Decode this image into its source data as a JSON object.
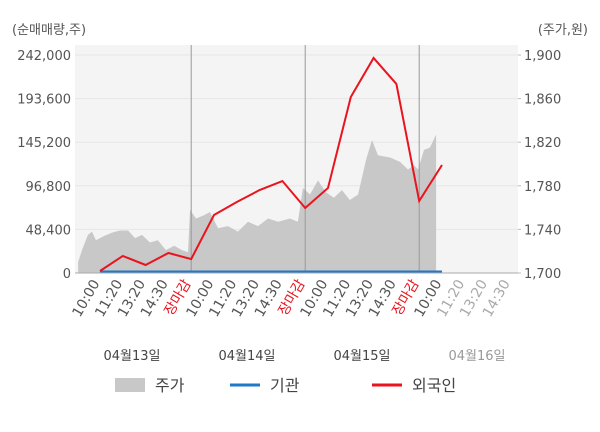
{
  "chart_data": {
    "type": "combo",
    "y_axis_label": "(순매매량,주)",
    "y2_axis_label": "(주가,원)",
    "xlim": [
      -1.1,
      18.9
    ],
    "xticks": [
      {
        "value": 0,
        "label": "10:00"
      },
      {
        "value": 1,
        "label": "11:20"
      },
      {
        "value": 2,
        "label": "13:20"
      },
      {
        "value": 3,
        "label": "14:30"
      },
      {
        "value": 4,
        "label": "장마감"
      },
      {
        "value": 5,
        "label": "10:00"
      },
      {
        "value": 6,
        "label": "11:20"
      },
      {
        "value": 7,
        "label": "13:20"
      },
      {
        "value": 8,
        "label": "14:30"
      },
      {
        "value": 9,
        "label": "장마감"
      },
      {
        "value": 10,
        "label": "10:00"
      },
      {
        "value": 11,
        "label": "11:20"
      },
      {
        "value": 12,
        "label": "13:20"
      },
      {
        "value": 13,
        "label": "14:30"
      },
      {
        "value": 14,
        "label": "장마감"
      },
      {
        "value": 15,
        "label": "10:00"
      },
      {
        "value": 16,
        "label": "11:20"
      },
      {
        "value": 17,
        "label": "13:20"
      },
      {
        "value": 18,
        "label": "14:30"
      }
    ],
    "day_labels": [
      "04월13일",
      "04월14일",
      "04월15일",
      "04월16일"
    ],
    "ylim": [
      0,
      242000
    ],
    "yticks": [
      0,
      {
        "value": 48400,
        "label": "48,400"
      },
      {
        "value": 96800,
        "label": "96,800"
      },
      {
        "value": 145200,
        "label": "145,200"
      },
      {
        "value": 193600,
        "label": "193,600"
      },
      {
        "value": 242000,
        "label": "242,000"
      }
    ],
    "y2lim": [
      1700,
      1900
    ],
    "y2ticks": [
      {
        "value": 1700,
        "label": "1,700"
      },
      {
        "value": 1740,
        "label": "1,740"
      },
      {
        "value": 1780,
        "label": "1,780"
      },
      {
        "value": 1820,
        "label": "1,820"
      },
      {
        "value": 1860,
        "label": "1,860"
      },
      {
        "value": 1900,
        "label": "1,900"
      }
    ],
    "series": [
      {
        "name": "주가",
        "type": "area",
        "axis": "y2",
        "color": "#c8c8c8",
        "x": [
          -0.96,
          -0.79,
          -0.53,
          -0.35,
          -0.18,
          0.18,
          0.53,
          0.88,
          1.23,
          1.54,
          1.84,
          2.19,
          2.54,
          2.89,
          3.25,
          3.6,
          3.86,
          3.95,
          4.21,
          4.56,
          4.82,
          5.18,
          5.61,
          6.05,
          6.49,
          6.93,
          7.37,
          7.81,
          8.33,
          8.68,
          8.9,
          9.21,
          9.56,
          9.91,
          10.26,
          10.61,
          10.96,
          11.32,
          11.67,
          11.93,
          12.19,
          12.72,
          13.16,
          13.51,
          13.77,
          13.95,
          14.21,
          14.47,
          14.74
        ],
        "values": [
          1710,
          1721,
          1735,
          1738,
          1730,
          1734,
          1737,
          1739,
          1739,
          1732,
          1735,
          1728,
          1730,
          1721,
          1725,
          1721,
          1719,
          1758,
          1750,
          1753,
          1756,
          1741,
          1743,
          1738,
          1747,
          1743,
          1750,
          1747,
          1750,
          1747,
          1778,
          1772,
          1785,
          1774,
          1769,
          1776,
          1767,
          1772,
          1804,
          1822,
          1808,
          1806,
          1802,
          1795,
          1799,
          1795,
          1813,
          1815,
          1827
        ]
      },
      {
        "name": "기관",
        "type": "line",
        "color": "#1f78c8",
        "x": [
          0,
          1,
          2,
          3,
          4,
          5,
          6,
          7,
          8,
          9,
          10,
          11,
          12,
          13,
          14,
          15
        ],
        "values": [
          0,
          0,
          0,
          0,
          0,
          0,
          0,
          0,
          0,
          0,
          0,
          0,
          0,
          0,
          0,
          0
        ]
      },
      {
        "name": "외국인",
        "type": "line",
        "color": "#e8141e",
        "x": [
          0,
          1,
          2,
          3,
          4,
          5,
          6,
          7,
          8,
          9,
          10,
          11,
          12,
          13,
          14,
          15
        ],
        "values": [
          2200,
          18900,
          8900,
          22200,
          15500,
          64400,
          78800,
          92100,
          102100,
          72200,
          94400,
          195400,
          238700,
          209800,
          79900,
          119900
        ]
      }
    ]
  }
}
